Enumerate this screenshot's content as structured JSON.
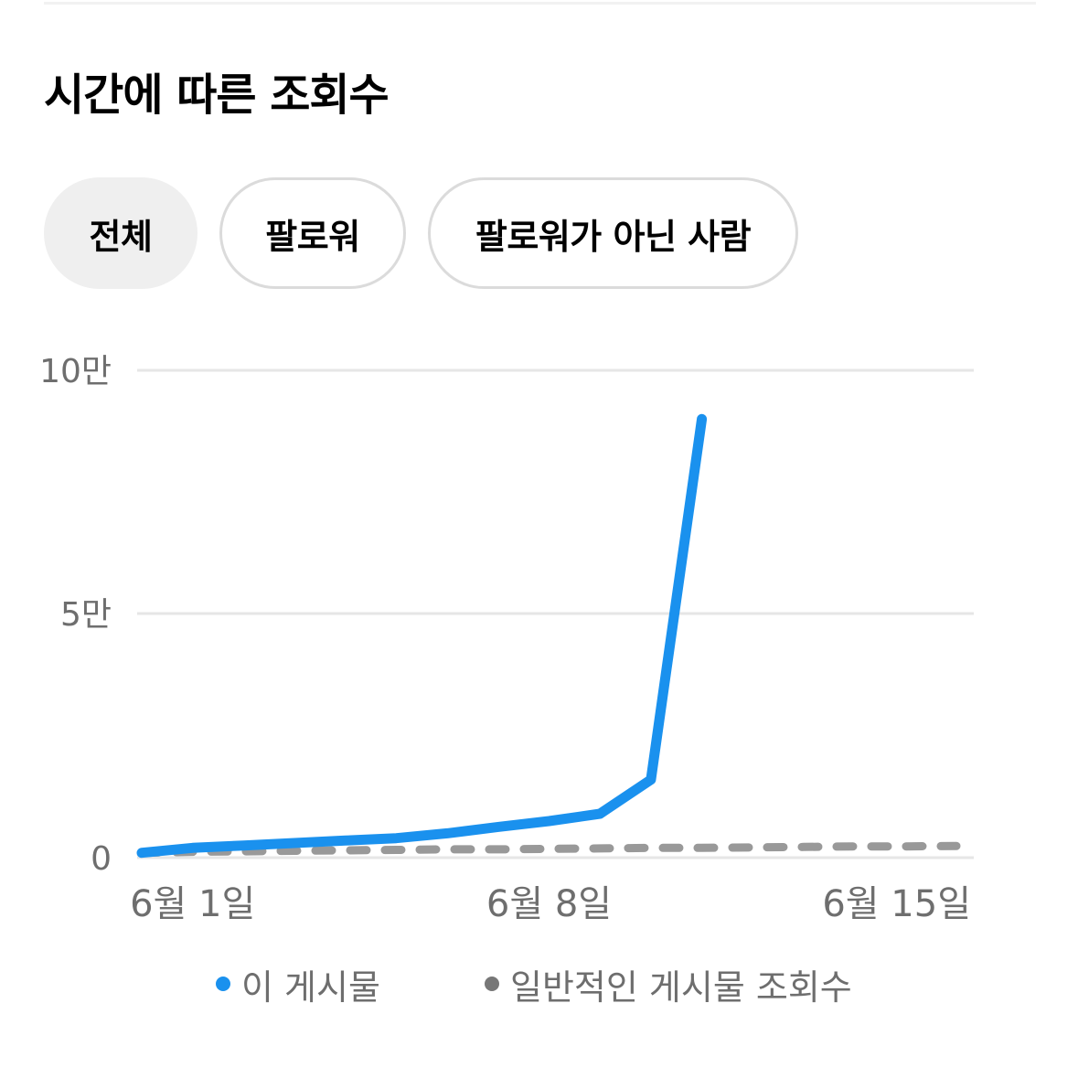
{
  "section": {
    "title": "시간에 따른 조회수"
  },
  "filters": [
    {
      "label": "전체",
      "active": true
    },
    {
      "label": "팔로워",
      "active": false
    },
    {
      "label": "팔로워가 아닌 사람",
      "active": false
    }
  ],
  "colors": {
    "this_post": "#1a91ee",
    "typical": "#999999",
    "gridline": "#e6e6e6",
    "tick_text": "#6e6e6e"
  },
  "chart_data": {
    "type": "line",
    "x_date_range": [
      "2024-05-31",
      "2024-06-16"
    ],
    "x": [
      "2024-05-31",
      "2024-06-01",
      "2024-06-02",
      "2024-06-03",
      "2024-06-04",
      "2024-06-05",
      "2024-06-06",
      "2024-06-07",
      "2024-06-08",
      "2024-06-09",
      "2024-06-10",
      "2024-06-11",
      "2024-06-12",
      "2024-06-13",
      "2024-06-14",
      "2024-06-15",
      "2024-06-16"
    ],
    "ylim": [
      0,
      100000
    ],
    "y_ticks": [
      {
        "value": 0,
        "label": "0"
      },
      {
        "value": 50000,
        "label": "5만"
      },
      {
        "value": 100000,
        "label": "10만"
      }
    ],
    "x_ticks": [
      {
        "date": "2024-06-01",
        "label": "6월 1일"
      },
      {
        "date": "2024-06-08",
        "label": "6월 8일"
      },
      {
        "date": "2024-06-15",
        "label": "6월 15일"
      }
    ],
    "grid": true,
    "legend_placement": "bottom",
    "series": [
      {
        "name": "이 게시물",
        "style": "solid",
        "x": [
          "2024-05-31",
          "2024-06-01",
          "2024-06-02",
          "2024-06-03",
          "2024-06-04",
          "2024-06-05",
          "2024-06-06",
          "2024-06-07",
          "2024-06-08",
          "2024-06-09",
          "2024-06-10",
          "2024-06-11"
        ],
        "values": [
          1000,
          2000,
          2500,
          3000,
          3500,
          4000,
          5000,
          6300,
          7500,
          9000,
          16000,
          90000
        ]
      },
      {
        "name": "일반적인 게시물 조회수",
        "style": "dashed",
        "x": [
          "2024-05-31",
          "2024-06-01",
          "2024-06-02",
          "2024-06-03",
          "2024-06-04",
          "2024-06-05",
          "2024-06-06",
          "2024-06-07",
          "2024-06-08",
          "2024-06-09",
          "2024-06-10",
          "2024-06-11",
          "2024-06-12",
          "2024-06-13",
          "2024-06-14",
          "2024-06-15",
          "2024-06-16"
        ],
        "values": [
          1000,
          1200,
          1300,
          1400,
          1500,
          1600,
          1700,
          1700,
          1800,
          1900,
          2000,
          2000,
          2100,
          2200,
          2300,
          2300,
          2400
        ]
      }
    ]
  }
}
